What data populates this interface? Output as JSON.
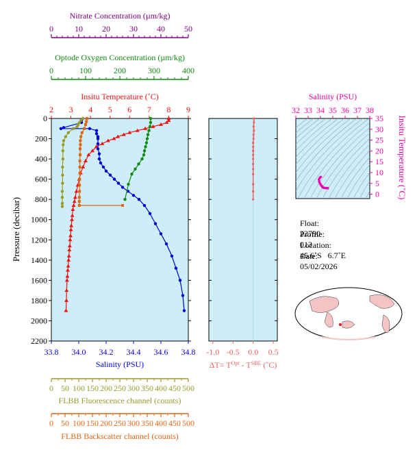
{
  "colors": {
    "nitrate": "#800080",
    "oxygen": "#118811",
    "temperature": "#ee1111",
    "salinity": "#0000dd",
    "fluorescence": "#9a9a2a",
    "backscatter": "#dd6611",
    "delta_t": "#f06060",
    "ts": "#ee00aa",
    "panel_bg": "#cdeef8"
  },
  "info": {
    "float_label": "Float:",
    "float_value": "22790",
    "profile_label": "Profile:",
    "profile_value": "013",
    "location_label": "Location:",
    "location_value": "45.6˚S   6.7˚E",
    "date_label": "Date:",
    "date_value": "05/02/2026"
  },
  "chart_data": [
    {
      "type": "line",
      "panel": "main-profile",
      "ylabel": "Pressure (decibar)",
      "ylim": [
        2200,
        0
      ],
      "yticks": [
        "0",
        "200",
        "400",
        "600",
        "800",
        "1000",
        "1200",
        "1400",
        "1600",
        "1800",
        "2000",
        "2200"
      ],
      "axes": {
        "temperature": {
          "label": "Insitu Temperature (˚C)",
          "range": [
            2,
            9
          ],
          "ticks": [
            "2",
            "3",
            "4",
            "5",
            "6",
            "7",
            "8",
            "9"
          ]
        },
        "salinity": {
          "label": "Salinity (PSU)",
          "range": [
            33.8,
            34.8
          ],
          "ticks": [
            "33.8",
            "34.0",
            "34.2",
            "34.4",
            "34.6",
            "34.8"
          ]
        },
        "nitrate": {
          "label": "Nitrate Concentration (µm/kg)",
          "range": [
            0,
            50
          ],
          "ticks": [
            "0",
            "10",
            "20",
            "30",
            "40",
            "50"
          ]
        },
        "oxygen": {
          "label": "Optode Oxygen Concentration (µm/kg)",
          "range": [
            0,
            400
          ],
          "ticks": [
            "0",
            "100",
            "200",
            "300",
            "400"
          ]
        },
        "fluorescence": {
          "label": "FLBB Fluorescence channel (counts)",
          "range": [
            0,
            500
          ],
          "ticks": [
            "0",
            "50",
            "100",
            "150",
            "200",
            "250",
            "300",
            "350",
            "400",
            "450",
            "500"
          ]
        },
        "backscatter": {
          "label": "FLBB Backscatter channel (counts)",
          "range": [
            0,
            500
          ],
          "ticks": [
            "0",
            "50",
            "100",
            "150",
            "200",
            "250",
            "300",
            "350",
            "400",
            "450",
            "500"
          ]
        }
      },
      "series": [
        {
          "axis": "temperature",
          "x": [
            8.0,
            8.0,
            7.9,
            7.6,
            7.2,
            6.8,
            6.4,
            6.0,
            5.7,
            5.4,
            5.2,
            4.9,
            4.6,
            4.3,
            4.1,
            3.9,
            3.75,
            3.62,
            3.5,
            3.42,
            3.35,
            3.28,
            3.22,
            3.18,
            3.14,
            3.1,
            3.07,
            3.05,
            3.02,
            3.0,
            2.98,
            2.96,
            2.94,
            2.92,
            2.9,
            2.88,
            2.86,
            2.84,
            2.82,
            2.8,
            2.78,
            2.77,
            2.75
          ],
          "y": [
            0,
            20,
            40,
            60,
            80,
            100,
            120,
            140,
            160,
            180,
            200,
            220,
            250,
            280,
            320,
            360,
            420,
            480,
            540,
            600,
            660,
            720,
            780,
            820,
            860,
            900,
            960,
            1000,
            1060,
            1100,
            1160,
            1200,
            1260,
            1300,
            1360,
            1400,
            1460,
            1500,
            1560,
            1600,
            1700,
            1800,
            1900
          ]
        },
        {
          "axis": "salinity",
          "x": [
            34.03,
            34.02,
            34.02,
            33.89,
            33.87,
            34.08,
            34.13,
            34.13,
            34.14,
            34.14,
            34.14,
            34.14,
            34.15,
            34.15,
            34.16,
            34.18,
            34.2,
            34.23,
            34.26,
            34.29,
            34.32,
            34.36,
            34.4,
            34.44,
            34.48,
            34.52,
            34.56,
            34.6,
            34.64,
            34.68,
            34.71,
            34.74,
            34.76,
            34.77
          ],
          "y": [
            0,
            20,
            40,
            90,
            100,
            100,
            120,
            150,
            180,
            200,
            250,
            300,
            350,
            400,
            440,
            480,
            520,
            560,
            600,
            640,
            680,
            720,
            760,
            800,
            860,
            940,
            1040,
            1140,
            1240,
            1360,
            1480,
            1600,
            1750,
            1900
          ]
        },
        {
          "axis": "oxygen",
          "x": [
            290,
            290,
            288,
            285,
            282,
            280,
            278,
            275,
            272,
            270,
            265,
            255,
            245,
            235,
            225,
            215
          ],
          "y": [
            0,
            40,
            80,
            120,
            160,
            200,
            240,
            280,
            320,
            360,
            400,
            450,
            500,
            550,
            650,
            800
          ]
        },
        {
          "axis": "fluorescence",
          "x": [
            115,
            108,
            102,
            98,
            94,
            80,
            62,
            52,
            45,
            43,
            42,
            42,
            41,
            41,
            41,
            40,
            40,
            40,
            40
          ],
          "y": [
            0,
            20,
            40,
            60,
            80,
            100,
            140,
            180,
            220,
            260,
            320,
            400,
            480,
            560,
            640,
            720,
            780,
            840,
            870
          ]
        },
        {
          "axis": "backscatter",
          "x": [
            130,
            128,
            125,
            120,
            112,
            108,
            106,
            106,
            105,
            105,
            104,
            104,
            104,
            103,
            103,
            103,
            102,
            102,
            102,
            260
          ],
          "y": [
            0,
            30,
            60,
            100,
            140,
            180,
            220,
            260,
            300,
            360,
            420,
            480,
            540,
            600,
            660,
            720,
            780,
            820,
            860,
            860
          ]
        }
      ]
    },
    {
      "type": "scatter",
      "panel": "delta-t",
      "xlabel": "ΔT= T",
      "xlabel_sup1": "Opt",
      "xlabel_mid": " - T",
      "xlabel_sup2": "SBE",
      "xlabel_unit": " (˚C)",
      "xlim": [
        -1.1,
        0.6
      ],
      "xticks": [
        "-1.0",
        "-0.5",
        "0.0",
        "0.5"
      ],
      "x": [
        0.02,
        0.02,
        0.01,
        0.02,
        0.01,
        0.01,
        0.0,
        0.0,
        0.0,
        0.0,
        0.0,
        0.0,
        0.0,
        0.0,
        0.0,
        0.0,
        0.0
      ],
      "y": [
        0,
        40,
        80,
        120,
        160,
        200,
        240,
        280,
        320,
        360,
        400,
        450,
        500,
        550,
        650,
        720,
        800
      ]
    },
    {
      "type": "line",
      "panel": "ts-diagram",
      "xlabel": "Salinity (PSU)",
      "ylabel": "Insitu Temperature (˚C)",
      "xlim": [
        32,
        38
      ],
      "ylim": [
        -2,
        35
      ],
      "xticks": [
        "32",
        "33",
        "34",
        "35",
        "36",
        "37",
        "38"
      ],
      "yticks": [
        "0",
        "5",
        "10",
        "15",
        "20",
        "25",
        "30",
        "35"
      ],
      "x": [
        34.02,
        33.95,
        33.88,
        33.9,
        33.98,
        34.06,
        34.14,
        34.16,
        34.2,
        34.26,
        34.36,
        34.48,
        34.6
      ],
      "y": [
        8.0,
        7.6,
        6.8,
        5.7,
        4.9,
        4.1,
        3.6,
        3.3,
        3.2,
        3.0,
        2.9,
        2.85,
        2.8
      ]
    }
  ]
}
